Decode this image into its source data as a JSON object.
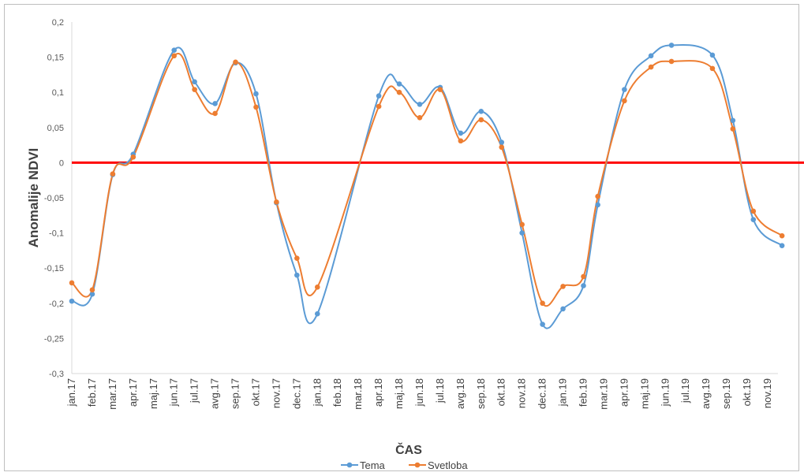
{
  "chart_data": {
    "type": "line",
    "title": "",
    "xlabel": "ČAS",
    "ylabel": "Anomalije  NDVI",
    "ylim": [
      -0.3,
      0.2
    ],
    "yticks": [
      -0.3,
      -0.25,
      -0.2,
      -0.15,
      -0.1,
      -0.05,
      0,
      0.05,
      0.1,
      0.15,
      0.2
    ],
    "ytick_labels": [
      "-0,3",
      "-0,25",
      "-0,2",
      "-0,15",
      "-0,1",
      "-0,05",
      "0",
      "0,05",
      "0,1",
      "0,15",
      "0,2"
    ],
    "categories": [
      "jan.17",
      "feb.17",
      "mar.17",
      "apr.17",
      "maj.17",
      "jun.17",
      "jul.17",
      "avg.17",
      "sep.17",
      "okt.17",
      "nov.17",
      "dec.17",
      "jan.18",
      "feb.18",
      "mar.18",
      "apr.18",
      "maj.18",
      "jun.18",
      "jul.18",
      "avg.18",
      "sep.18",
      "okt.18",
      "nov.18",
      "dec.18",
      "jan.19",
      "feb.19",
      "mar.19",
      "apr.19",
      "maj.19",
      "jun.19",
      "jul.19",
      "avg.19",
      "sep.19",
      "okt.19",
      "nov.19"
    ],
    "series": [
      {
        "name": "Tema",
        "color": "#5B9BD5",
        "points": [
          [
            0,
            -0.197
          ],
          [
            1,
            -0.187
          ],
          [
            2,
            -0.017
          ],
          [
            3,
            0.012
          ],
          [
            5,
            0.16
          ],
          [
            6,
            0.115
          ],
          [
            7,
            0.084
          ],
          [
            8,
            0.142
          ],
          [
            9,
            0.098
          ],
          [
            10,
            -0.057
          ],
          [
            11,
            -0.16
          ],
          [
            12,
            -0.215
          ],
          [
            15,
            0.095
          ],
          [
            16,
            0.112
          ],
          [
            17,
            0.083
          ],
          [
            18,
            0.107
          ],
          [
            19,
            0.042
          ],
          [
            20,
            0.073
          ],
          [
            21,
            0.029
          ],
          [
            22,
            -0.1
          ],
          [
            23,
            -0.23
          ],
          [
            24,
            -0.208
          ],
          [
            25,
            -0.175
          ],
          [
            25.7,
            -0.06
          ],
          [
            27,
            0.104
          ],
          [
            28.3,
            0.152
          ],
          [
            29.3,
            0.167
          ],
          [
            31.3,
            0.153
          ],
          [
            32.3,
            0.06
          ],
          [
            33.3,
            -0.081
          ],
          [
            34.7,
            -0.118
          ]
        ]
      },
      {
        "name": "Svetloba",
        "color": "#ED7D31",
        "points": [
          [
            0,
            -0.171
          ],
          [
            1,
            -0.181
          ],
          [
            2,
            -0.016
          ],
          [
            3,
            0.008
          ],
          [
            5,
            0.152
          ],
          [
            6,
            0.104
          ],
          [
            7,
            0.07
          ],
          [
            8,
            0.143
          ],
          [
            9,
            0.079
          ],
          [
            10,
            -0.056
          ],
          [
            11,
            -0.136
          ],
          [
            12,
            -0.177
          ],
          [
            15,
            0.08
          ],
          [
            16,
            0.1
          ],
          [
            17,
            0.064
          ],
          [
            18,
            0.104
          ],
          [
            19,
            0.031
          ],
          [
            20,
            0.061
          ],
          [
            21,
            0.022
          ],
          [
            22,
            -0.088
          ],
          [
            23,
            -0.2
          ],
          [
            24,
            -0.176
          ],
          [
            25,
            -0.162
          ],
          [
            25.7,
            -0.048
          ],
          [
            27,
            0.088
          ],
          [
            28.3,
            0.136
          ],
          [
            29.3,
            0.144
          ],
          [
            31.3,
            0.134
          ],
          [
            32.3,
            0.048
          ],
          [
            33.3,
            -0.069
          ],
          [
            34.7,
            -0.104
          ]
        ]
      }
    ],
    "reference_line": {
      "y": 0,
      "color": "#FF0000"
    },
    "grid": false,
    "legend": {
      "placement": "bottom",
      "entries": [
        "Tema",
        "Svetloba"
      ]
    }
  }
}
